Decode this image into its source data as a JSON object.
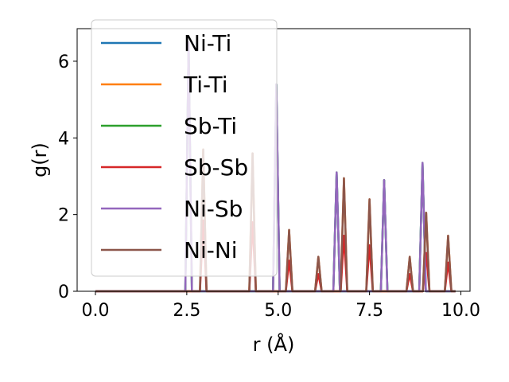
{
  "chart_data": {
    "type": "line",
    "xlabel": "r (Å)",
    "ylabel": "g(r)",
    "xlim": [
      -0.5,
      10.25
    ],
    "ylim": [
      0,
      6.85
    ],
    "xticks": [
      0.0,
      2.5,
      5.0,
      7.5,
      10.0
    ],
    "xtick_labels": [
      "0.0",
      "2.5",
      "5.0",
      "7.5",
      "10.0"
    ],
    "yticks": [
      0,
      2,
      4,
      6
    ],
    "ytick_labels": [
      "0",
      "2",
      "4",
      "6"
    ],
    "grid": false,
    "legend_position": "top-left",
    "series": [
      {
        "name": "Ni-Ti",
        "color": "#1f77b4",
        "peaks": [
          [
            2.55,
            6.5
          ],
          [
            4.95,
            5.4
          ],
          [
            6.6,
            3.1
          ],
          [
            7.9,
            2.9
          ],
          [
            8.95,
            3.35
          ]
        ]
      },
      {
        "name": "Ti-Ti",
        "color": "#ff7f0e",
        "peaks": [
          [
            2.95,
            3.7
          ],
          [
            4.3,
            3.6
          ],
          [
            5.3,
            1.6
          ],
          [
            6.1,
            0.9
          ],
          [
            6.8,
            2.95
          ],
          [
            7.5,
            2.4
          ],
          [
            8.6,
            0.9
          ],
          [
            9.05,
            2.05
          ],
          [
            9.65,
            1.45
          ]
        ]
      },
      {
        "name": "Sb-Ti",
        "color": "#2ca02c",
        "peaks": [
          [
            2.55,
            6.5
          ],
          [
            4.95,
            5.4
          ],
          [
            6.6,
            3.1
          ],
          [
            7.9,
            2.9
          ],
          [
            8.95,
            3.35
          ]
        ]
      },
      {
        "name": "Sb-Sb",
        "color": "#d62728",
        "peaks": [
          [
            2.95,
            1.85
          ],
          [
            4.3,
            1.8
          ],
          [
            5.3,
            0.8
          ],
          [
            6.1,
            0.45
          ],
          [
            6.8,
            1.45
          ],
          [
            7.5,
            1.2
          ],
          [
            8.6,
            0.45
          ],
          [
            9.05,
            1.0
          ],
          [
            9.65,
            0.75
          ]
        ]
      },
      {
        "name": "Ni-Sb",
        "color": "#9467bd",
        "peaks": [
          [
            2.55,
            6.5
          ],
          [
            4.95,
            5.4
          ],
          [
            6.6,
            3.1
          ],
          [
            7.9,
            2.9
          ],
          [
            8.95,
            3.35
          ]
        ]
      },
      {
        "name": "Ni-Ni",
        "color": "#8c564b",
        "peaks": [
          [
            2.95,
            3.7
          ],
          [
            4.3,
            3.6
          ],
          [
            5.3,
            1.6
          ],
          [
            6.1,
            0.9
          ],
          [
            6.8,
            2.95
          ],
          [
            7.5,
            2.4
          ],
          [
            8.6,
            0.9
          ],
          [
            9.05,
            2.05
          ],
          [
            9.65,
            1.45
          ]
        ]
      }
    ]
  }
}
